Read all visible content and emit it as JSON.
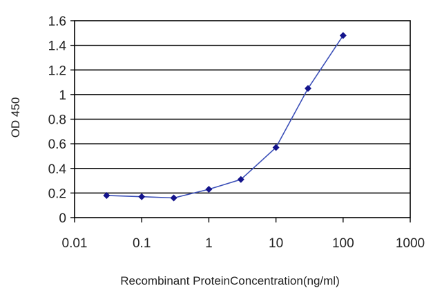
{
  "chart_data": {
    "type": "line",
    "title": "",
    "xlabel": "Recombinant ProteinConcentration(ng/ml)",
    "ylabel": "OD 450",
    "xscale": "log",
    "xlim": [
      0.01,
      1000
    ],
    "ylim": [
      0,
      1.6
    ],
    "xticks": [
      "0.01",
      "0.1",
      "1",
      "10",
      "100",
      "1000"
    ],
    "yticks": [
      "0",
      "0.2",
      "0.4",
      "0.6",
      "0.8",
      "1",
      "1.2",
      "1.4",
      "1.6"
    ],
    "grid": "horizontal",
    "legend": "none",
    "series": [
      {
        "x": [
          0.03,
          0.1,
          0.3,
          1,
          3,
          10,
          30,
          100
        ],
        "y": [
          0.18,
          0.17,
          0.16,
          0.23,
          0.31,
          0.57,
          1.05,
          1.48
        ]
      }
    ],
    "colors": {
      "line": "#3b4fb8",
      "marker": "#14148c",
      "grid": "#000000",
      "axis": "#000000"
    }
  }
}
